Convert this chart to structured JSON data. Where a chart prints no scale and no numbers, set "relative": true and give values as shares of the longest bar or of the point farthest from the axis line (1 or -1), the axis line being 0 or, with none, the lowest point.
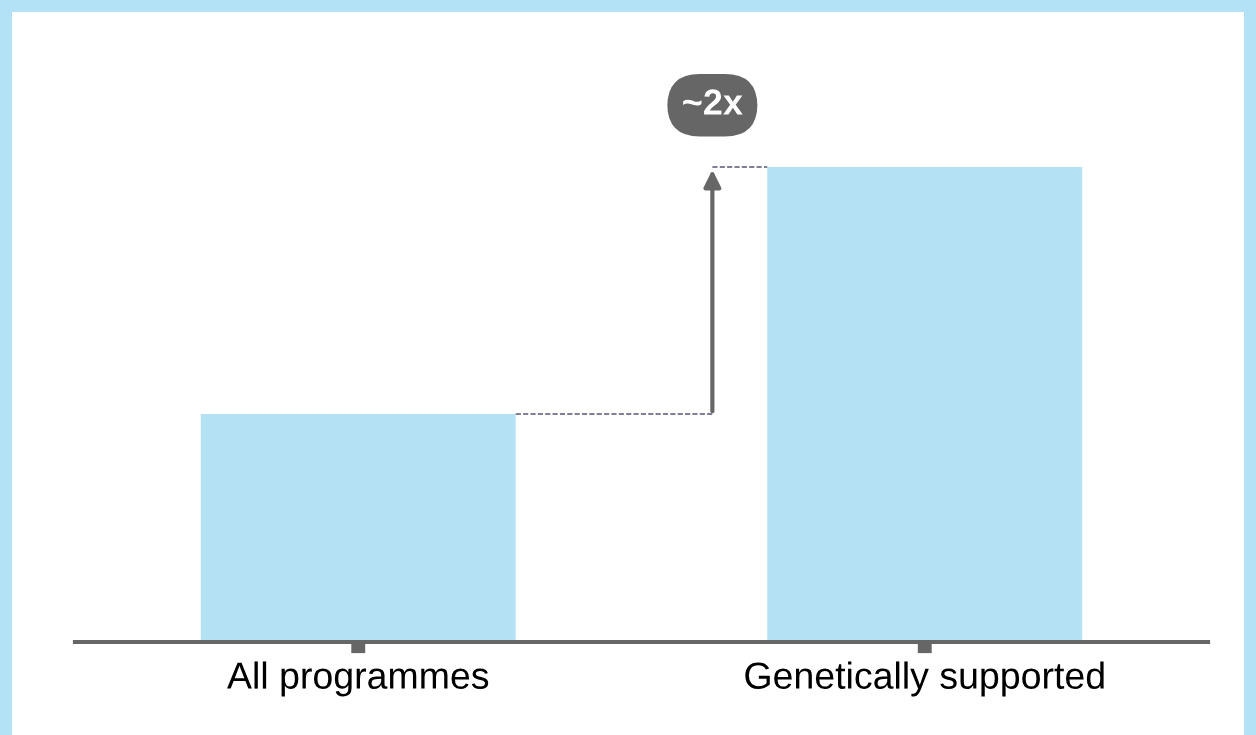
{
  "chart_data": {
    "type": "bar",
    "relative": true,
    "categories": [
      "All programmes",
      "Genetically supported"
    ],
    "values": [
      0.48,
      1
    ],
    "color": "#b5e1f5",
    "annotations": [
      "~2x"
    ],
    "grid": false
  }
}
